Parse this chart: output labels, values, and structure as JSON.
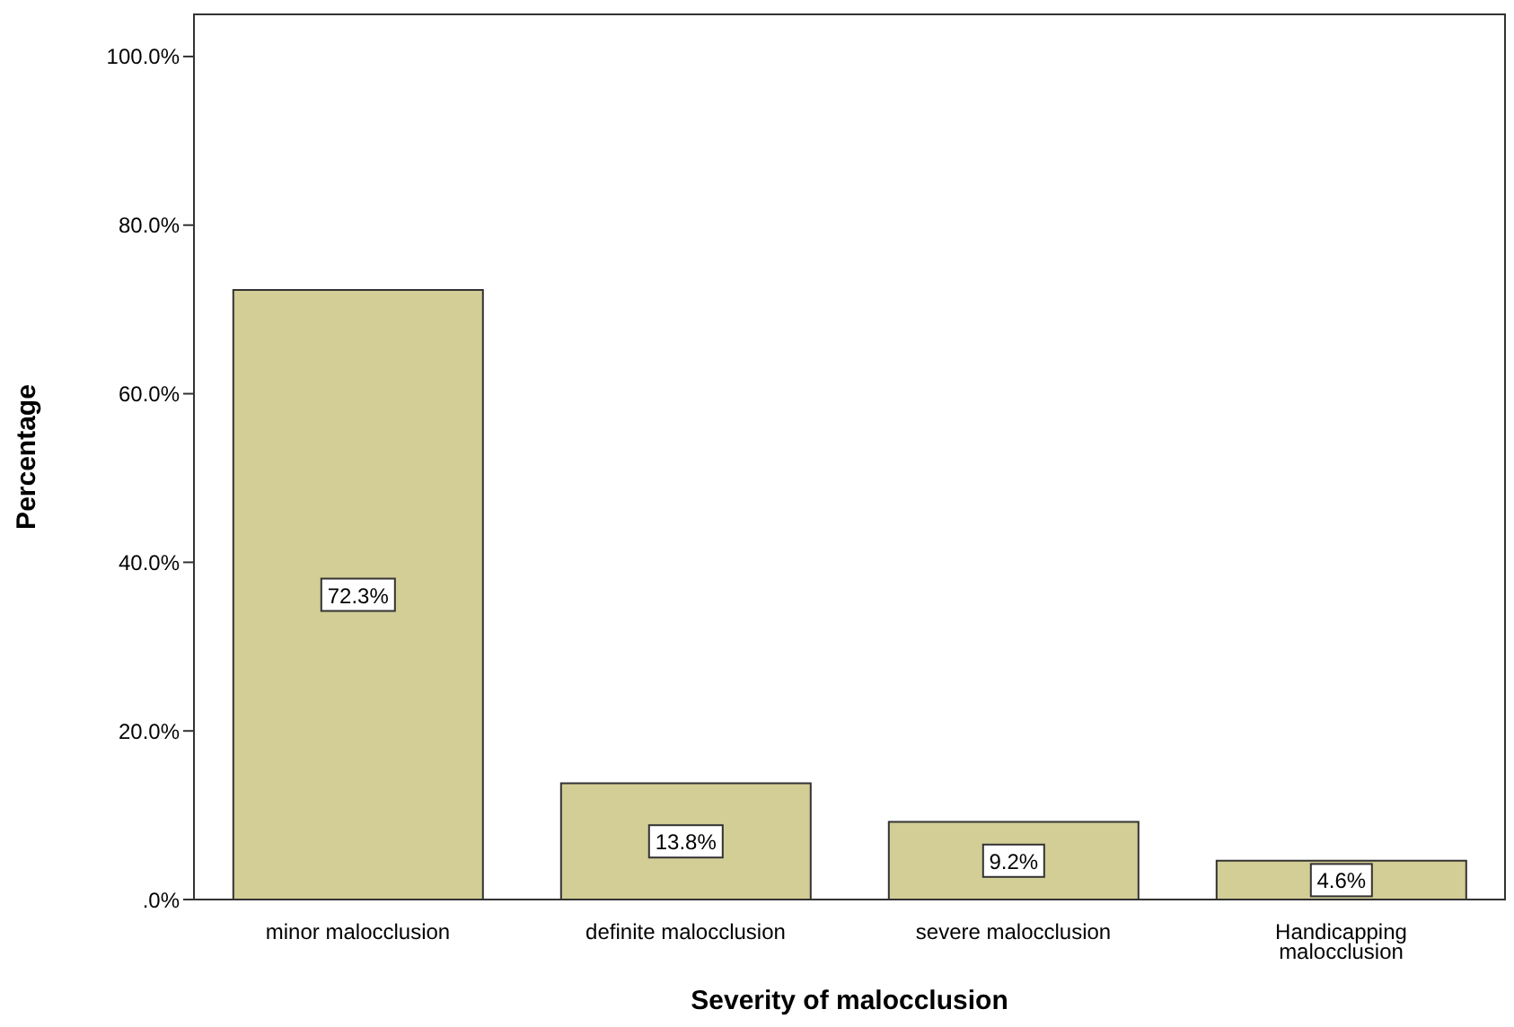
{
  "chart_data": {
    "type": "bar",
    "xlabel": "Severity of malocclusion",
    "ylabel": "Percentage",
    "categories": [
      "minor malocclusion",
      "definite malocclusion",
      "severe malocclusion",
      "Handicapping malocclusion"
    ],
    "values": [
      72.3,
      13.8,
      9.2,
      4.6
    ],
    "value_labels": [
      "72.3%",
      "13.8%",
      "9.2%",
      "4.6%"
    ],
    "color": "#d3cd96",
    "ylim": [
      0,
      105
    ],
    "yticks": [
      {
        "value": 0,
        "label": ".0%"
      },
      {
        "value": 20,
        "label": "20.0%"
      },
      {
        "value": 40,
        "label": "40.0%"
      },
      {
        "value": 60,
        "label": "60.0%"
      },
      {
        "value": 80,
        "label": "80.0%"
      },
      {
        "value": 100,
        "label": "100.0%"
      }
    ],
    "grid": false
  }
}
